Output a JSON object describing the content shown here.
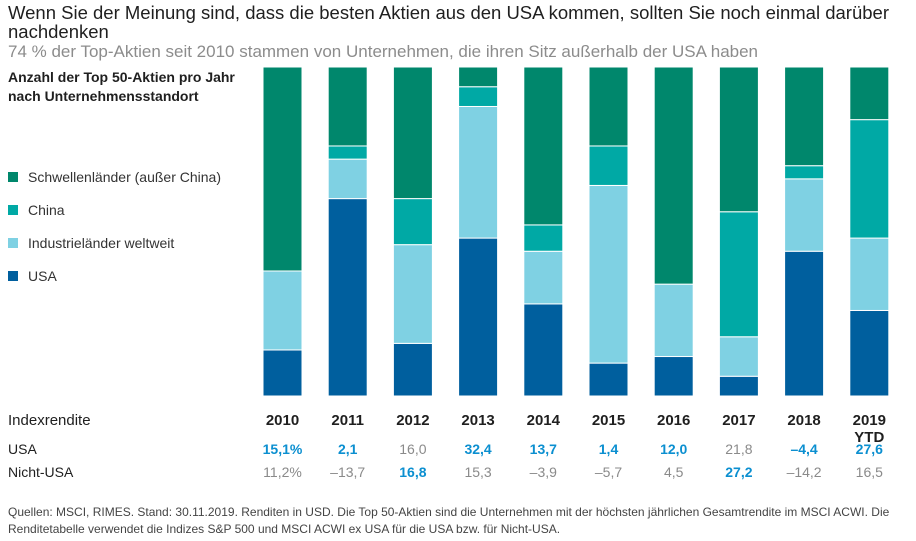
{
  "title": "Wenn Sie der Meinung sind, dass die besten Aktien aus den USA kommen, sollten Sie noch einmal darüber nachdenken",
  "subtitle": "74 % der Top-Aktien seit 2010 stammen von Unternehmen, die ihren Sitz außerhalb der USA haben",
  "axis_title": "Anzahl der Top 50-Aktien pro Jahr nach Unternehmensstandort",
  "legend": [
    {
      "label": "Schwellenländer (außer China)",
      "color": "#00876c"
    },
    {
      "label": "China",
      "color": "#00a9a5"
    },
    {
      "label": "Industrieländer weltweit",
      "color": "#7fd1e3"
    },
    {
      "label": "USA",
      "color": "#005f9e"
    }
  ],
  "chart_data": {
    "type": "bar",
    "stacked": true,
    "categories": [
      "2010",
      "2011",
      "2012",
      "2013",
      "2014",
      "2015",
      "2016",
      "2017",
      "2018",
      "2019 YTD"
    ],
    "ylim": [
      0,
      50
    ],
    "series": [
      {
        "name": "USA",
        "color": "#005f9e",
        "values": [
          7,
          30,
          8,
          24,
          14,
          5,
          6,
          3,
          22,
          13
        ]
      },
      {
        "name": "Industrieländer weltweit",
        "color": "#7fd1e3",
        "values": [
          12,
          6,
          15,
          20,
          8,
          27,
          11,
          6,
          11,
          11
        ]
      },
      {
        "name": "China",
        "color": "#00a9a5",
        "values": [
          0,
          2,
          7,
          3,
          4,
          6,
          0,
          19,
          2,
          18
        ]
      },
      {
        "name": "Schwellenländer (außer China)",
        "color": "#00876c",
        "values": [
          31,
          12,
          20,
          3,
          24,
          12,
          33,
          22,
          15,
          8
        ]
      }
    ]
  },
  "table": {
    "header_label": "Indexrendite",
    "years": [
      "2010",
      "2011",
      "2012",
      "2013",
      "2014",
      "2015",
      "2016",
      "2017",
      "2018",
      "2019 YTD"
    ],
    "rows": [
      {
        "label": "USA",
        "values": [
          "15,1%",
          "2,1",
          "16,0",
          "32,4",
          "13,7",
          "1,4",
          "12,0",
          "21,8",
          "–4,4",
          "27,6"
        ],
        "highlight": [
          true,
          true,
          false,
          true,
          true,
          true,
          true,
          false,
          true,
          true
        ]
      },
      {
        "label": "Nicht-USA",
        "values": [
          "11,2%",
          "–13,7",
          "16,8",
          "15,3",
          "–3,9",
          "–5,7",
          "4,5",
          "27,2",
          "–14,2",
          "16,5"
        ],
        "highlight": [
          false,
          false,
          true,
          false,
          false,
          false,
          false,
          true,
          false,
          false
        ]
      }
    ],
    "highlight_color": "#0b8fd0",
    "muted_color": "#8a8a8a"
  },
  "footnote": "Quellen: MSCI, RIMES. Stand: 30.11.2019. Renditen in USD. Die Top 50-Aktien sind die Unternehmen mit der höchsten jährlichen Gesamtrendite im MSCI ACWI. Die Renditetabelle verwendet die Indizes S&P 500 und MSCI ACWI ex USA für die USA bzw. für Nicht-USA."
}
